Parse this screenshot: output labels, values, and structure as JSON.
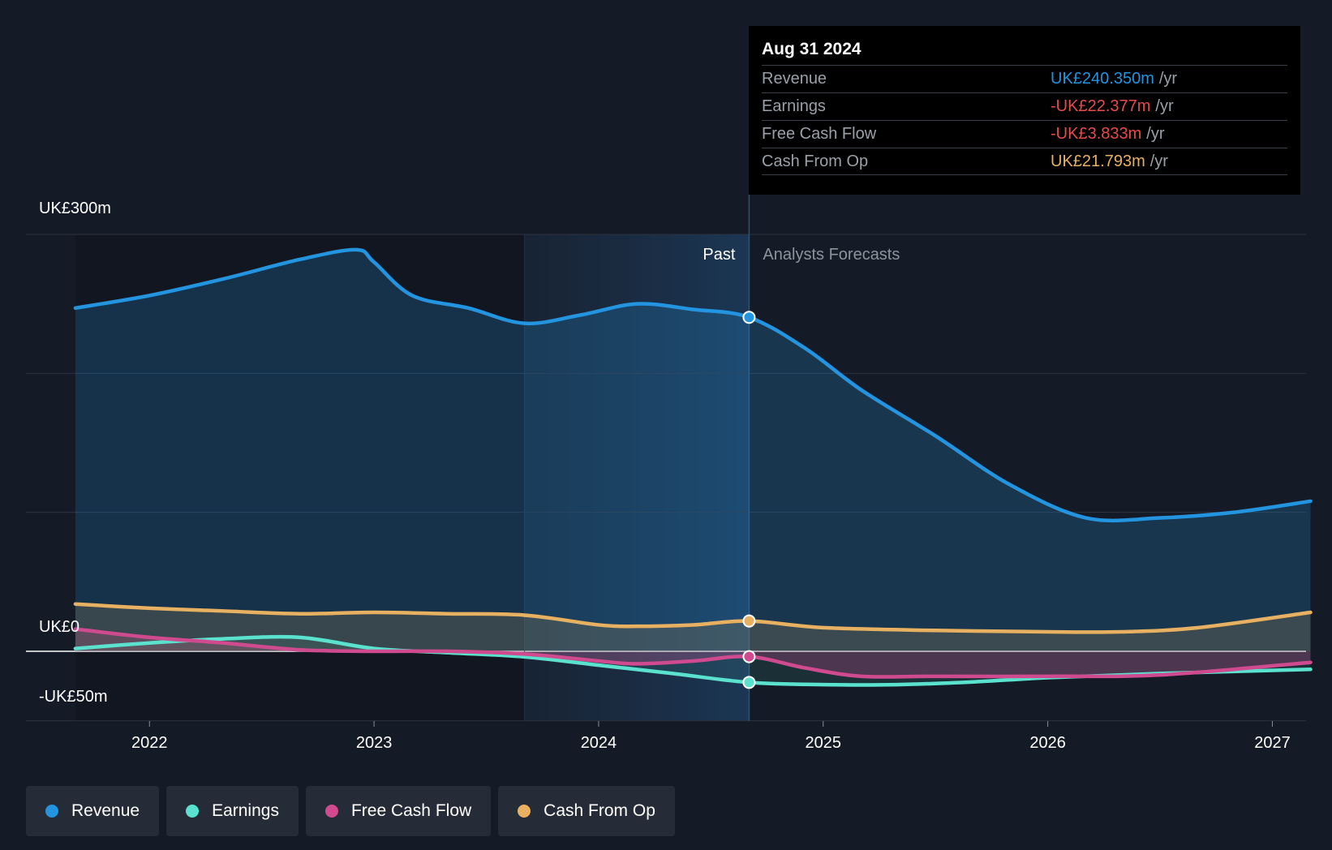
{
  "chart_data": {
    "type": "line",
    "y_axis": {
      "labels": [
        "UK£300m",
        "UK£0",
        "-UK£50m"
      ],
      "ylim": [
        -50,
        300
      ],
      "gridlines": [
        300,
        200,
        100,
        0,
        -50
      ]
    },
    "x_axis": {
      "tick_labels": [
        "2022",
        "2023",
        "2024",
        "2025",
        "2026",
        "2027"
      ],
      "tick_values": [
        2022,
        2023,
        2024,
        2025,
        2026,
        2027
      ],
      "xlim": [
        2021.45,
        2027.15
      ]
    },
    "regions": {
      "past_label": "Past",
      "forecast_label": "Analysts Forecasts",
      "past_shade_start": 2023.67,
      "divider": 2024.67
    },
    "series": [
      {
        "name": "Revenue",
        "color": "#2394df",
        "points": [
          [
            2021.67,
            247
          ],
          [
            2022.0,
            256
          ],
          [
            2022.33,
            268
          ],
          [
            2022.67,
            282
          ],
          [
            2022.92,
            289
          ],
          [
            2023.0,
            280
          ],
          [
            2023.17,
            256
          ],
          [
            2023.42,
            247
          ],
          [
            2023.67,
            236
          ],
          [
            2023.92,
            242
          ],
          [
            2024.17,
            250
          ],
          [
            2024.42,
            246
          ],
          [
            2024.67,
            240.35
          ],
          [
            2024.92,
            218
          ],
          [
            2025.17,
            188
          ],
          [
            2025.5,
            155
          ],
          [
            2025.83,
            120
          ],
          [
            2026.17,
            96
          ],
          [
            2026.5,
            96
          ],
          [
            2026.83,
            100
          ],
          [
            2027.17,
            108
          ]
        ]
      },
      {
        "name": "Earnings",
        "color": "#5ae2cf",
        "points": [
          [
            2021.67,
            2
          ],
          [
            2022.0,
            6
          ],
          [
            2022.33,
            9
          ],
          [
            2022.67,
            10
          ],
          [
            2023.0,
            2
          ],
          [
            2023.33,
            -1
          ],
          [
            2023.67,
            -4
          ],
          [
            2024.0,
            -10
          ],
          [
            2024.33,
            -16
          ],
          [
            2024.67,
            -22.377
          ],
          [
            2025.0,
            -24
          ],
          [
            2025.33,
            -24
          ],
          [
            2025.67,
            -22
          ],
          [
            2026.0,
            -19
          ],
          [
            2026.5,
            -16
          ],
          [
            2027.17,
            -13
          ]
        ]
      },
      {
        "name": "Free Cash Flow",
        "color": "#d04a8f",
        "points": [
          [
            2021.67,
            16
          ],
          [
            2022.0,
            10
          ],
          [
            2022.33,
            6
          ],
          [
            2022.67,
            1
          ],
          [
            2023.0,
            0
          ],
          [
            2023.33,
            0
          ],
          [
            2023.67,
            -2
          ],
          [
            2024.0,
            -7
          ],
          [
            2024.17,
            -9
          ],
          [
            2024.42,
            -7
          ],
          [
            2024.67,
            -3.833
          ],
          [
            2024.92,
            -12
          ],
          [
            2025.17,
            -18
          ],
          [
            2025.5,
            -18
          ],
          [
            2026.0,
            -18
          ],
          [
            2026.5,
            -17
          ],
          [
            2027.17,
            -8
          ]
        ]
      },
      {
        "name": "Cash From Op",
        "color": "#e8b061",
        "points": [
          [
            2021.67,
            34
          ],
          [
            2022.0,
            31
          ],
          [
            2022.33,
            29
          ],
          [
            2022.67,
            27
          ],
          [
            2023.0,
            28
          ],
          [
            2023.33,
            27
          ],
          [
            2023.67,
            26
          ],
          [
            2024.0,
            19
          ],
          [
            2024.17,
            18
          ],
          [
            2024.42,
            19
          ],
          [
            2024.67,
            21.793
          ],
          [
            2025.0,
            17
          ],
          [
            2025.5,
            15
          ],
          [
            2026.0,
            14
          ],
          [
            2026.33,
            14
          ],
          [
            2026.67,
            17
          ],
          [
            2027.17,
            28
          ]
        ]
      }
    ]
  },
  "tooltip": {
    "date": "Aug 31 2024",
    "unit": "/yr",
    "rows": [
      {
        "name": "Revenue",
        "value": "UK£240.350m",
        "color": "#2394df"
      },
      {
        "name": "Earnings",
        "value": "-UK£22.377m",
        "color": "#e64c4c"
      },
      {
        "name": "Free Cash Flow",
        "value": "-UK£3.833m",
        "color": "#e64c4c"
      },
      {
        "name": "Cash From Op",
        "value": "UK£21.793m",
        "color": "#e8b061"
      }
    ]
  },
  "legend": [
    {
      "label": "Revenue",
      "color": "#2394df"
    },
    {
      "label": "Earnings",
      "color": "#5ae2cf"
    },
    {
      "label": "Free Cash Flow",
      "color": "#d04a8f"
    },
    {
      "label": "Cash From Op",
      "color": "#e8b061"
    }
  ]
}
